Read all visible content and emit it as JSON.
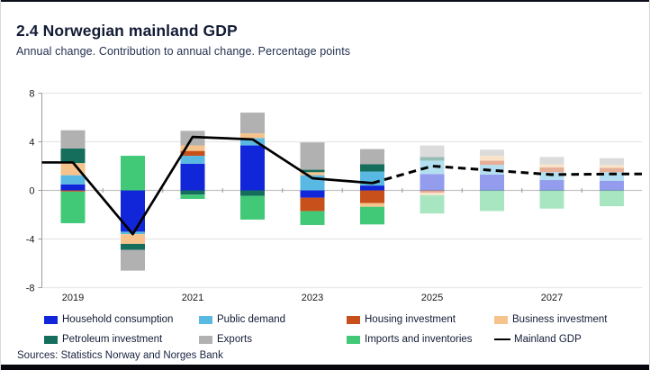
{
  "header": {
    "title": "2.4 Norwegian mainland GDP",
    "subtitle": "Annual change. Contribution to annual change. Percentage points"
  },
  "footer": {
    "sources": "Sources: Statistics Norway and Norges Bank"
  },
  "chart_data": {
    "type": "bar",
    "stacked": true,
    "title": "2.4 Norwegian mainland GDP",
    "subtitle": "Annual change. Contribution to annual change. Percentage points",
    "categories": [
      2019,
      2020,
      2021,
      2022,
      2023,
      2024,
      2025,
      2026,
      2027,
      2028
    ],
    "x_axis_labels": [
      "2019",
      "2021",
      "2023",
      "2025",
      "2027"
    ],
    "x_axis_label_years": [
      2019,
      2021,
      2023,
      2025,
      2027
    ],
    "ylim": [
      -8,
      8
    ],
    "yticks": [
      8,
      4,
      0,
      -4,
      -8
    ],
    "grid": true,
    "forecast_start_year": 2025,
    "series": [
      {
        "name": "Household consumption",
        "color": "#1126d9",
        "values": [
          0.5,
          -3.4,
          2.2,
          3.7,
          -0.6,
          0.4,
          1.35,
          1.3,
          0.85,
          0.8
        ]
      },
      {
        "name": "Public demand",
        "color": "#5ab9e2",
        "values": [
          0.75,
          -0.2,
          0.65,
          0.6,
          1.25,
          1.15,
          1.1,
          0.8,
          0.65,
          0.7
        ]
      },
      {
        "name": "Housing investment",
        "color": "#c8501a",
        "values": [
          -0.1,
          0,
          0.4,
          0,
          -1.1,
          -1.05,
          -0.2,
          0.35,
          0.4,
          0.35
        ]
      },
      {
        "name": "Business investment",
        "color": "#f6c38d",
        "values": [
          1.0,
          -0.8,
          0.45,
          0.4,
          0.25,
          -0.3,
          -0.2,
          0.4,
          0.25,
          0.25
        ]
      },
      {
        "name": "Petroleum investment",
        "color": "#156e5c",
        "values": [
          1.2,
          -0.5,
          -0.35,
          -0.45,
          0.2,
          0.6,
          0.3,
          0,
          0,
          0
        ]
      },
      {
        "name": "Exports",
        "color": "#b1b1b1",
        "values": [
          1.5,
          -1.7,
          1.2,
          1.7,
          2.25,
          1.25,
          0.95,
          0.5,
          0.6,
          0.55
        ]
      },
      {
        "name": "Imports and inventories",
        "color": "#41c978",
        "values": [
          -2.6,
          2.85,
          -0.35,
          -1.95,
          -1.15,
          -1.45,
          -1.5,
          -1.7,
          -1.5,
          -1.3
        ]
      }
    ],
    "line_series": {
      "name": "Mainland GDP",
      "color": "#000000",
      "values": [
        2.3,
        -3.6,
        4.4,
        4.2,
        1.0,
        0.6,
        2.0,
        1.65,
        1.3,
        1.35
      ],
      "dashed_from_year": 2024
    }
  },
  "legend": {
    "items": [
      {
        "label": "Household consumption",
        "color": "#1126d9",
        "type": "swatch"
      },
      {
        "label": "Public demand",
        "color": "#5ab9e2",
        "type": "swatch"
      },
      {
        "label": "Housing investment",
        "color": "#c8501a",
        "type": "swatch"
      },
      {
        "label": "Business investment",
        "color": "#f6c38d",
        "type": "swatch"
      },
      {
        "label": "Petroleum investment",
        "color": "#156e5c",
        "type": "swatch"
      },
      {
        "label": "Exports",
        "color": "#b1b1b1",
        "type": "swatch"
      },
      {
        "label": "Imports and inventories",
        "color": "#41c978",
        "type": "swatch"
      },
      {
        "label": "Mainland GDP",
        "color": "#000000",
        "type": "line"
      }
    ]
  },
  "colors": {
    "background": "#ffffff",
    "gridline": "#e7e7e7",
    "zero_line": "#c2c2c2",
    "axis": "#9a9a9a",
    "text": "#131c36",
    "forecast_bar_opacity": 0.45
  }
}
